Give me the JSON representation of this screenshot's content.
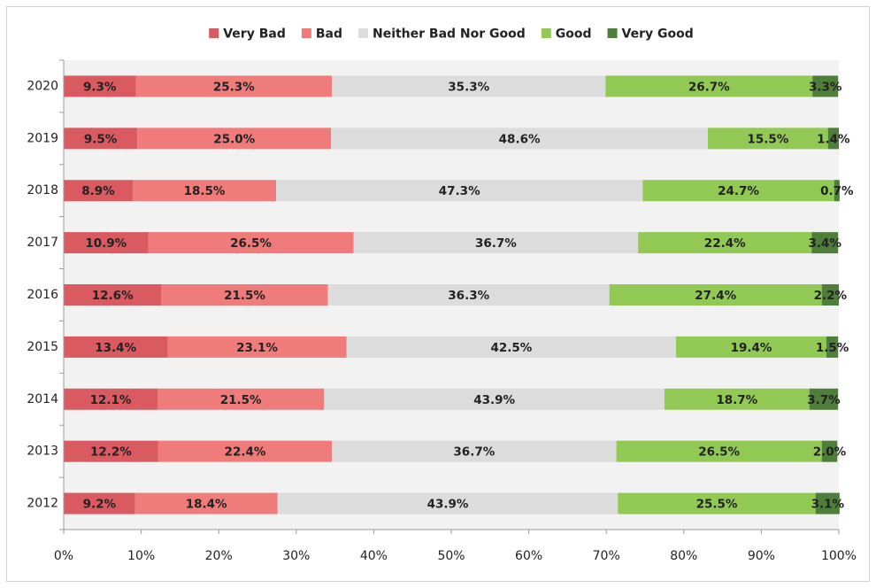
{
  "chart_data": {
    "type": "stacked-bar-horizontal",
    "categories": [
      "2020",
      "2019",
      "2018",
      "2017",
      "2016",
      "2015",
      "2014",
      "2013",
      "2012"
    ],
    "series": [
      {
        "name": "Very Bad",
        "color": "#d95a60",
        "values": [
          9.3,
          9.5,
          8.9,
          10.9,
          12.6,
          13.4,
          12.1,
          12.2,
          9.2
        ],
        "value_labels": [
          "9.3%",
          "9.5%",
          "8.9%",
          "10.9%",
          "12.6%",
          "13.4%",
          "12.1%",
          "12.2%",
          "9.2%"
        ]
      },
      {
        "name": "Bad",
        "color": "#f07b7b",
        "values": [
          25.3,
          25.0,
          18.5,
          26.5,
          21.5,
          23.1,
          21.5,
          22.4,
          18.4
        ],
        "value_labels": [
          "25.3%",
          "25.0%",
          "18.5%",
          "26.5%",
          "21.5%",
          "23.1%",
          "21.5%",
          "22.4%",
          "18.4%"
        ]
      },
      {
        "name": "Neither Bad Nor Good",
        "color": "#dcdcdc",
        "values": [
          35.3,
          48.6,
          47.3,
          36.7,
          36.3,
          42.5,
          43.9,
          36.7,
          43.9
        ],
        "value_labels": [
          "35.3%",
          "48.6%",
          "47.3%",
          "36.7%",
          "36.3%",
          "42.5%",
          "43.9%",
          "36.7%",
          "43.9%"
        ]
      },
      {
        "name": "Good",
        "color": "#92c955",
        "values": [
          26.7,
          15.5,
          24.7,
          22.4,
          27.4,
          19.4,
          18.7,
          26.5,
          25.5
        ],
        "value_labels": [
          "26.7%",
          "15.5%",
          "24.7%",
          "22.4%",
          "27.4%",
          "19.4%",
          "18.7%",
          "26.5%",
          "25.5%"
        ]
      },
      {
        "name": "Very Good",
        "color": "#4e7e3a",
        "values": [
          3.3,
          1.4,
          0.7,
          3.4,
          2.2,
          1.5,
          3.7,
          2.0,
          3.1
        ],
        "value_labels": [
          "3.3%",
          "1.4%",
          "0.7%",
          "3.4%",
          "2.2%",
          "1.5%",
          "3.7%",
          "2.0%",
          "3.1%"
        ]
      }
    ],
    "xlim": [
      0,
      100
    ],
    "xticks": [
      {
        "value": 0,
        "label": "0%"
      },
      {
        "value": 10,
        "label": "10%"
      },
      {
        "value": 20,
        "label": "20%"
      },
      {
        "value": 30,
        "label": "30%"
      },
      {
        "value": 40,
        "label": "40%"
      },
      {
        "value": 50,
        "label": "50%"
      },
      {
        "value": 60,
        "label": "60%"
      },
      {
        "value": 70,
        "label": "70%"
      },
      {
        "value": 80,
        "label": "80%"
      },
      {
        "value": 90,
        "label": "90%"
      },
      {
        "value": 100,
        "label": "100%"
      }
    ],
    "legend": "top"
  }
}
